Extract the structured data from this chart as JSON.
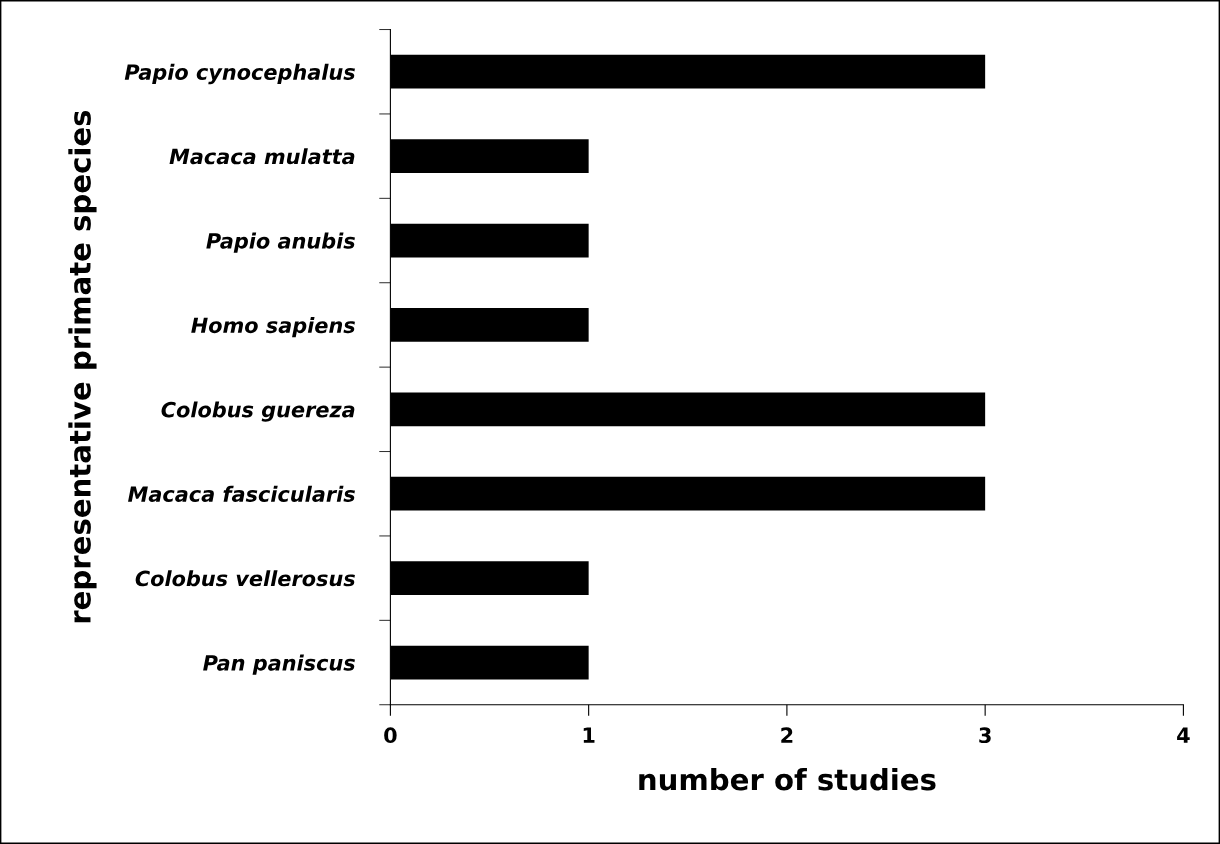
{
  "chart_data": {
    "type": "bar",
    "orientation": "horizontal",
    "xlabel": "number of studies",
    "ylabel": "representative primate species",
    "categories": [
      "Papio cynocephalus",
      "Macaca mulatta",
      "Papio anubis",
      "Homo sapiens",
      "Colobus guereza",
      "Macaca fascicularis",
      "Colobus vellerosus",
      "Pan paniscus"
    ],
    "values": [
      3,
      1,
      1,
      1,
      3,
      3,
      1,
      1
    ],
    "color": "#000000",
    "xlim": [
      0,
      4
    ],
    "xticks": [
      0,
      1,
      2,
      3,
      4
    ],
    "grid": false,
    "legend": false
  }
}
